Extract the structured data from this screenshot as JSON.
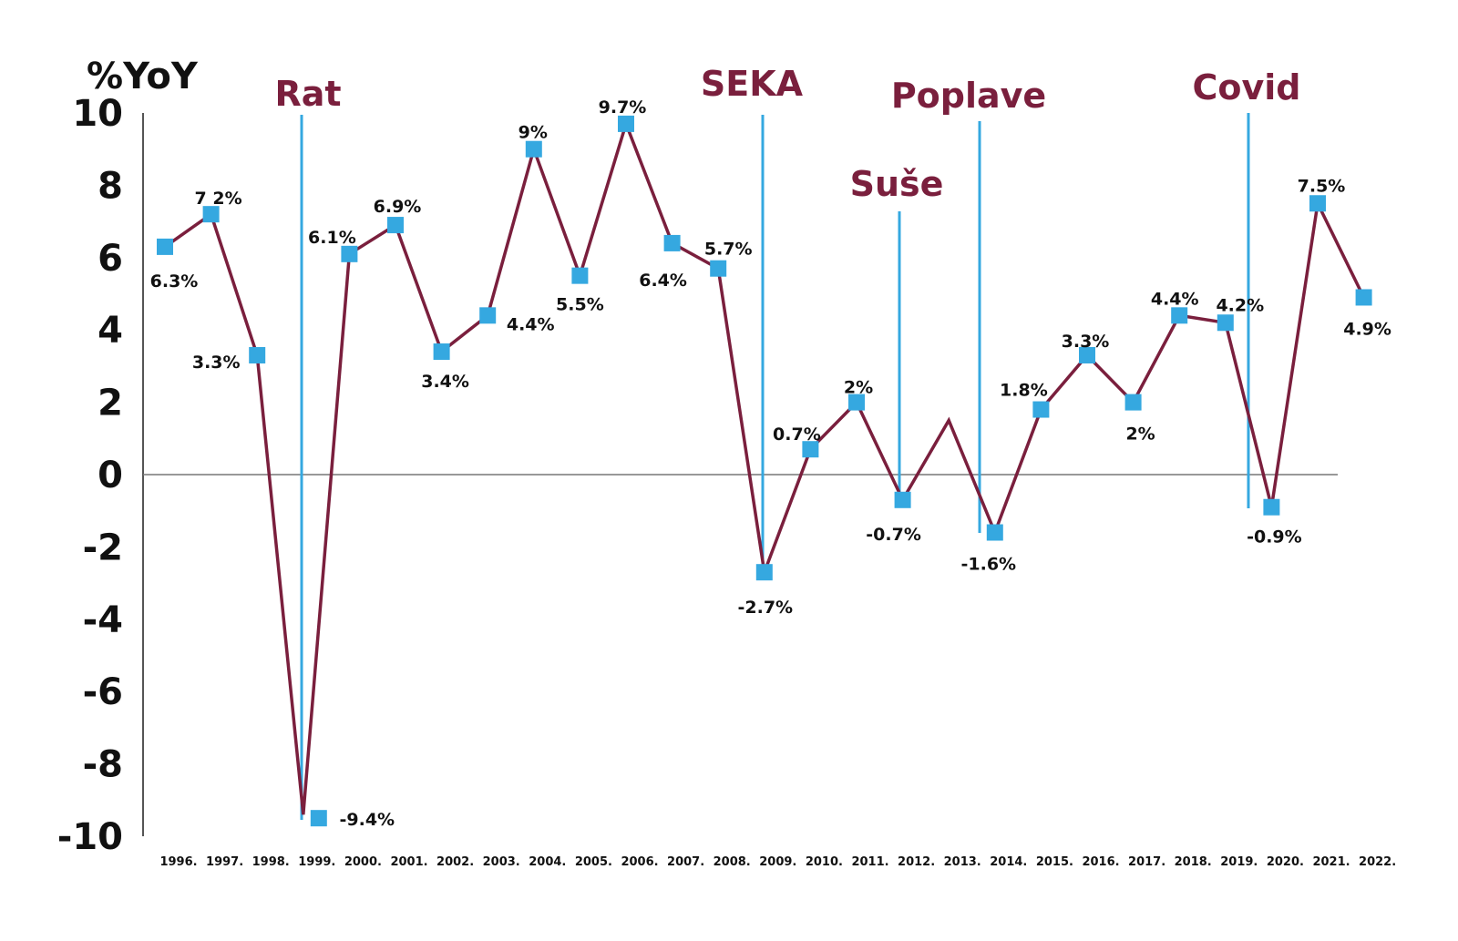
{
  "chart_data": {
    "type": "line",
    "ylabel": "%YoY",
    "ylim": [
      -10,
      10
    ],
    "yticks": [
      "10",
      "8",
      "6",
      "4",
      "2",
      "0",
      "-2",
      "-4",
      "-6",
      "-8",
      "-10"
    ],
    "ytick_values": [
      10,
      8,
      6,
      4,
      2,
      0,
      -2,
      -4,
      -6,
      -8,
      -10
    ],
    "categories": [
      "1996.",
      "1997.",
      "1998.",
      "1999.",
      "2000.",
      "2001.",
      "2002.",
      "2003.",
      "2004.",
      "2005.",
      "2006.",
      "2007.",
      "2008.",
      "2009.",
      "2010.",
      "2011.",
      "2012.",
      "2013.",
      "2014.",
      "2015.",
      "2016.",
      "2017.",
      "2018.",
      "2019.",
      "2020.",
      "2021.",
      "2022."
    ],
    "values": [
      6.3,
      7.2,
      3.3,
      -9.4,
      6.1,
      6.9,
      3.4,
      4.4,
      9,
      5.5,
      9.7,
      6.4,
      5.7,
      -2.7,
      0.7,
      2,
      -0.7,
      1.5,
      -1.6,
      1.8,
      3.3,
      2,
      4.4,
      4.2,
      -0.9,
      7.5,
      4.9
    ],
    "data_labels": [
      "6.3%",
      "7 2%",
      "3.3%",
      "-9.4%",
      "6.1%",
      "6.9%",
      "3.4%",
      "4.4%",
      "9%",
      "5.5%",
      "9.7%",
      "6.4%",
      "5.7%",
      "-2.7%",
      "0.7%",
      "2%",
      "-0.7%",
      "",
      "-1.6%",
      "1.8%",
      "3.3%",
      "2%",
      "4.4%",
      "4.2%",
      "-0.9%",
      "7.5%",
      "4.9%"
    ],
    "events": [
      {
        "label": "Rat",
        "year": "1999."
      },
      {
        "label": "SEKA",
        "year": "2009."
      },
      {
        "label": "Suše",
        "year": "2012."
      },
      {
        "label": "Poplave",
        "year": "2014."
      },
      {
        "label": "Covid",
        "year": "2020."
      }
    ],
    "colors": {
      "line": "#7a1f3d",
      "marker": "#35a8e0",
      "event_line": "#35a8e0",
      "event_label": "#7a1f3d",
      "axis": "#555555"
    }
  }
}
